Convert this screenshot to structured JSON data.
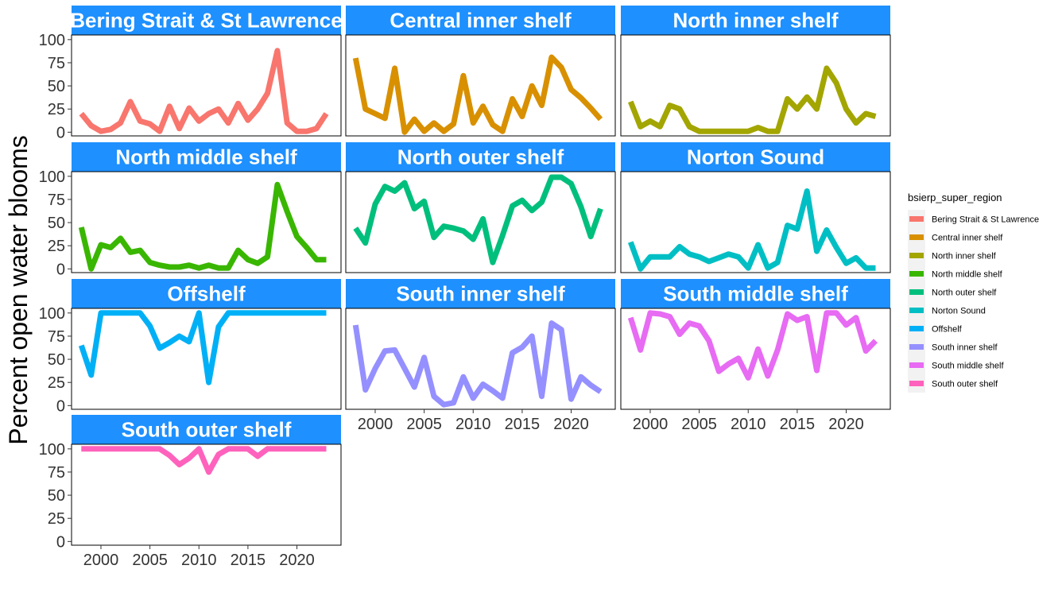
{
  "chart_data": {
    "type": "line",
    "ylabel": "Percent open water blooms",
    "xlabel": "",
    "xlim": [
      1997,
      2024.5
    ],
    "ylim": [
      -4,
      105
    ],
    "x_ticks": [
      2000,
      2005,
      2010,
      2015,
      2020
    ],
    "y_ticks": [
      0,
      25,
      50,
      75,
      100
    ],
    "grid": false,
    "legend": {
      "title": "bsierp_super_region",
      "position": "right"
    },
    "x": [
      1998,
      1999,
      2000,
      2001,
      2002,
      2003,
      2004,
      2005,
      2006,
      2007,
      2008,
      2009,
      2010,
      2011,
      2012,
      2013,
      2014,
      2015,
      2016,
      2017,
      2018,
      2019,
      2020,
      2021,
      2022,
      2023
    ],
    "series": [
      {
        "name": "Bering Strait & St Lawrence",
        "color": "#F8766D",
        "values": [
          20,
          7,
          1,
          3,
          10,
          33,
          12,
          9,
          1,
          28,
          4,
          26,
          12,
          20,
          25,
          10,
          31,
          13,
          25,
          42,
          88,
          10,
          1,
          1,
          4,
          20
        ]
      },
      {
        "name": "Central inner shelf",
        "color": "#D89000",
        "values": [
          80,
          25,
          20,
          15,
          69,
          0,
          14,
          1,
          10,
          1,
          9,
          61,
          10,
          28,
          8,
          1,
          36,
          17,
          50,
          29,
          81,
          70,
          46,
          37,
          26,
          14
        ]
      },
      {
        "name": "North inner shelf",
        "color": "#A3A500",
        "values": [
          33,
          6,
          12,
          6,
          29,
          25,
          6,
          1,
          1,
          1,
          1,
          1,
          1,
          5,
          1,
          1,
          36,
          25,
          38,
          25,
          69,
          53,
          25,
          10,
          20,
          17
        ]
      },
      {
        "name": "North middle shelf",
        "color": "#39B600",
        "values": [
          45,
          0,
          26,
          23,
          33,
          18,
          20,
          7,
          4,
          2,
          2,
          4,
          1,
          4,
          1,
          1,
          20,
          10,
          6,
          13,
          91,
          62,
          35,
          23,
          10,
          10
        ]
      },
      {
        "name": "North outer shelf",
        "color": "#00BF7D",
        "values": [
          44,
          28,
          70,
          89,
          84,
          93,
          65,
          73,
          34,
          46,
          44,
          41,
          32,
          54,
          7,
          36,
          68,
          74,
          63,
          72,
          99,
          99,
          92,
          67,
          35,
          65
        ]
      },
      {
        "name": "Norton Sound",
        "color": "#00BFC4",
        "values": [
          29,
          0,
          13,
          13,
          13,
          24,
          16,
          13,
          8,
          12,
          16,
          13,
          1,
          26,
          1,
          7,
          47,
          43,
          84,
          19,
          42,
          23,
          6,
          12,
          1,
          1
        ]
      },
      {
        "name": "Offshelf",
        "color": "#00B0F6",
        "values": [
          65,
          33,
          100,
          100,
          100,
          100,
          100,
          86,
          62,
          68,
          75,
          69,
          100,
          25,
          85,
          100,
          100,
          100,
          100,
          100,
          100,
          100,
          100,
          100,
          100,
          100
        ]
      },
      {
        "name": "South inner shelf",
        "color": "#9590FF",
        "values": [
          87,
          17,
          40,
          59,
          60,
          40,
          20,
          52,
          10,
          1,
          3,
          31,
          8,
          23,
          16,
          8,
          57,
          63,
          75,
          10,
          89,
          82,
          7,
          31,
          22,
          15
        ]
      },
      {
        "name": "South middle shelf",
        "color": "#E76BF3",
        "values": [
          95,
          60,
          100,
          99,
          96,
          77,
          89,
          86,
          70,
          37,
          45,
          51,
          30,
          61,
          32,
          60,
          99,
          92,
          96,
          38,
          100,
          100,
          87,
          95,
          59,
          70
        ]
      },
      {
        "name": "South outer shelf",
        "color": "#FF62BC",
        "values": [
          100,
          100,
          100,
          100,
          100,
          100,
          100,
          100,
          100,
          93,
          83,
          90,
          100,
          75,
          94,
          100,
          100,
          100,
          92,
          100,
          100,
          100,
          100,
          100,
          100,
          100
        ]
      }
    ]
  }
}
